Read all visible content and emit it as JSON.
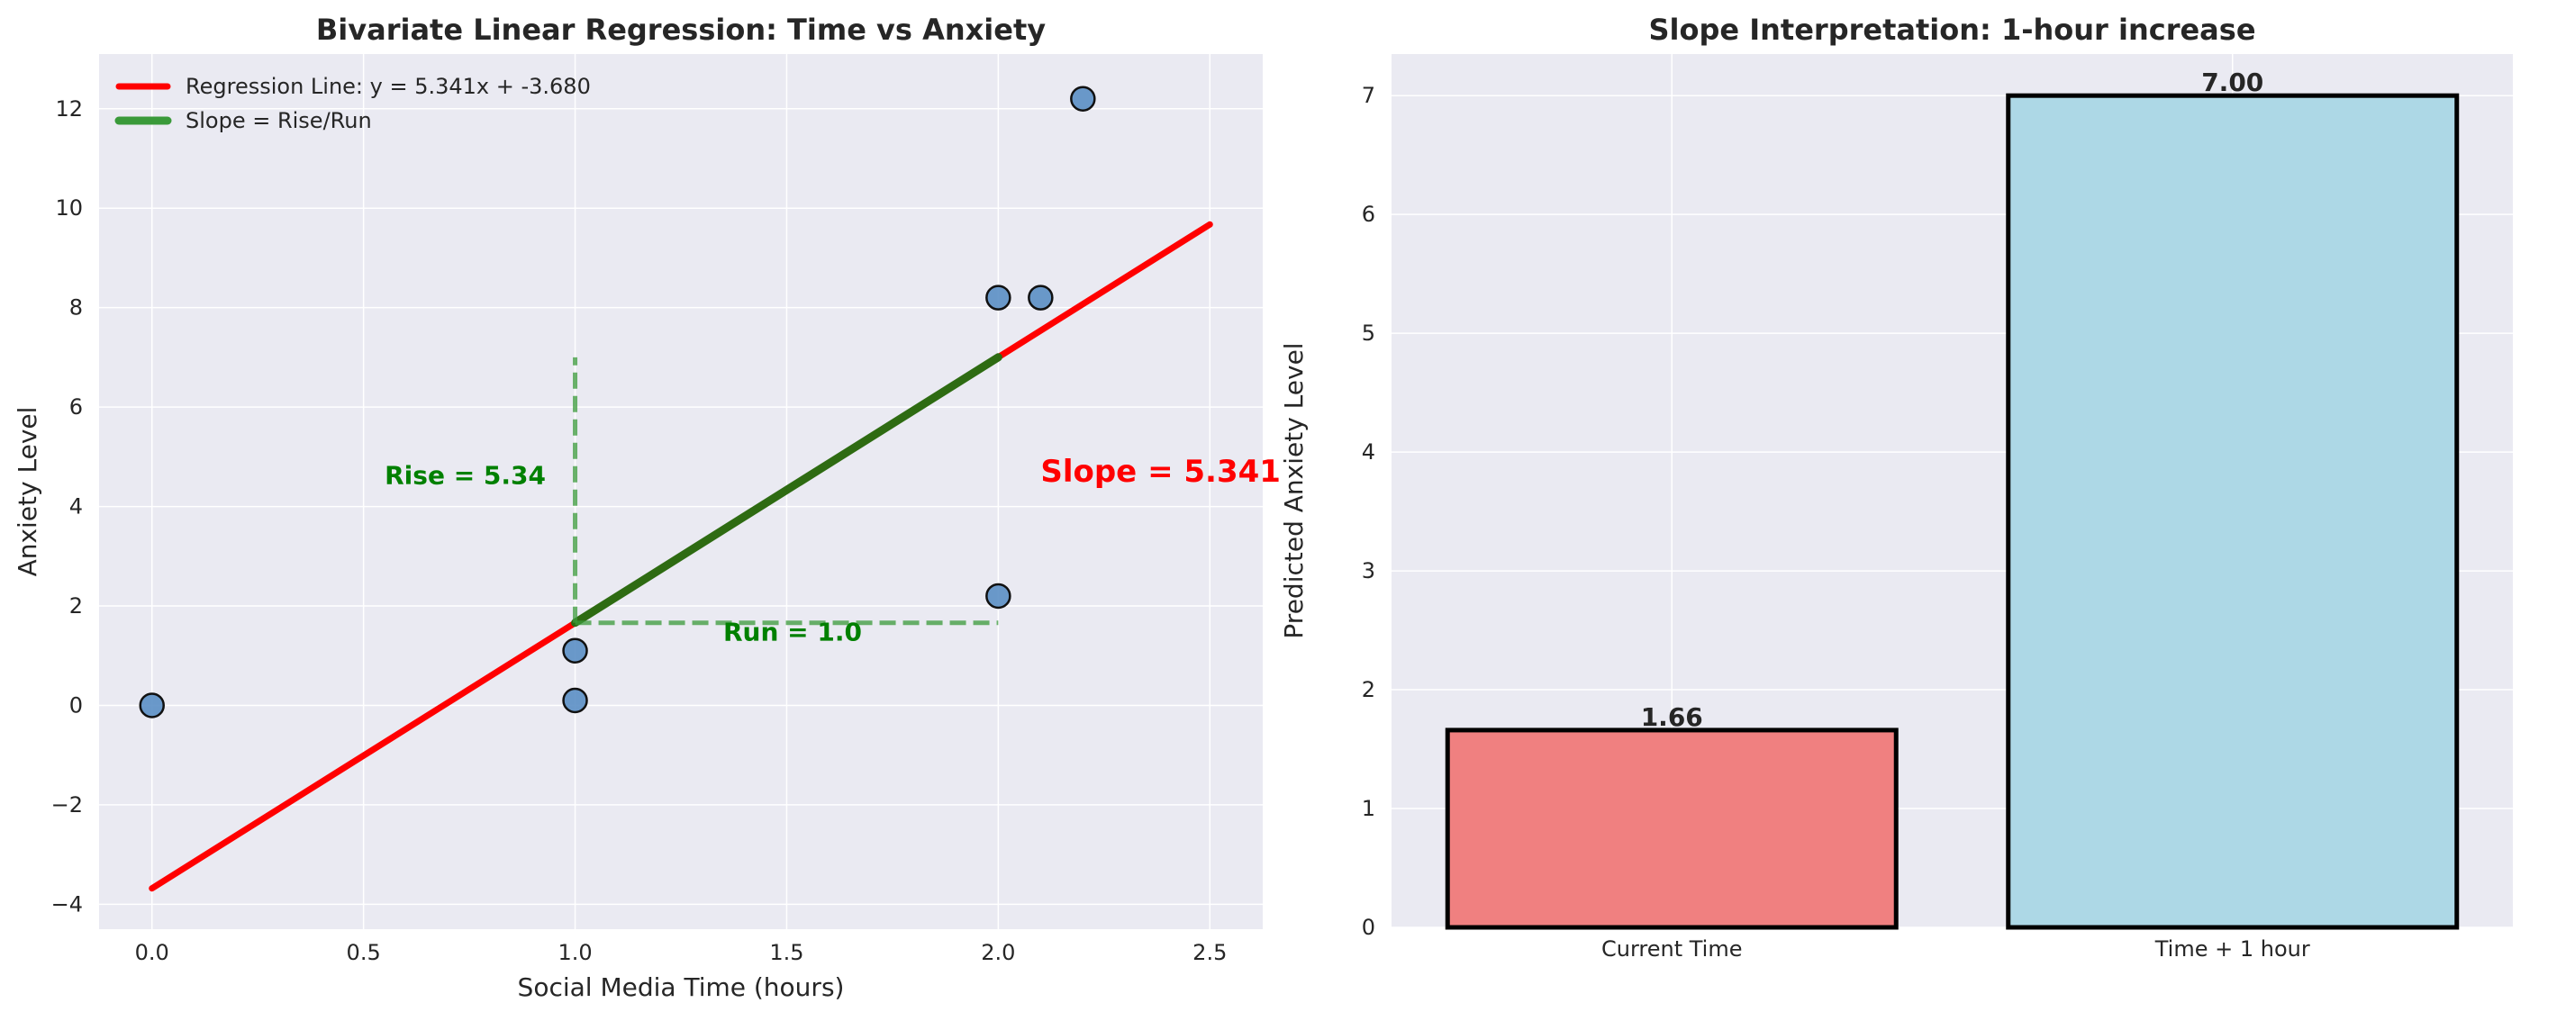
{
  "chart_data": [
    {
      "type": "scatter",
      "title": "Bivariate Linear Regression: Time vs Anxiety",
      "xlabel": "Social Media Time (hours)",
      "ylabel": "Anxiety Level",
      "xlim": [
        -0.125,
        2.625
      ],
      "ylim": [
        -4.5,
        13.1
      ],
      "xticks": [
        0.0,
        0.5,
        1.0,
        1.5,
        2.0,
        2.5
      ],
      "xtick_labels": [
        "0.0",
        "0.5",
        "1.0",
        "1.5",
        "2.0",
        "2.5"
      ],
      "yticks": [
        -4,
        -2,
        0,
        2,
        4,
        6,
        8,
        10,
        12
      ],
      "ytick_labels": [
        "−4",
        "−2",
        "0",
        "2",
        "4",
        "6",
        "8",
        "10",
        "12"
      ],
      "grid": true,
      "legend_position": "top-left",
      "points": [
        {
          "x": 0.0,
          "y": 0.0
        },
        {
          "x": 1.0,
          "y": 1.1
        },
        {
          "x": 1.0,
          "y": 0.1
        },
        {
          "x": 2.0,
          "y": 8.2
        },
        {
          "x": 2.1,
          "y": 8.2
        },
        {
          "x": 2.2,
          "y": 12.2
        },
        {
          "x": 2.0,
          "y": 2.2
        }
      ],
      "regression": {
        "label": "Regression Line: y = 5.341x + -3.680",
        "slope": 5.341,
        "intercept": -3.68,
        "x_range": [
          0.0,
          2.5
        ],
        "color": "#ff0000"
      },
      "slope_segment": {
        "label": "Slope = Rise/Run",
        "x_range": [
          1.0,
          2.0
        ],
        "color": "#2e6b12",
        "legend_color": "#3a9a3a"
      },
      "run_line": {
        "x": [
          1.0,
          2.0
        ],
        "y": 1.66
      },
      "rise_line": {
        "x": 1.0,
        "y": [
          1.66,
          7.0
        ]
      },
      "annotations": {
        "rise": {
          "text": "Rise = 5.34",
          "x": 0.55,
          "y": 4.45,
          "color": "#008000"
        },
        "run": {
          "text": "Run = 1.0",
          "x": 1.35,
          "y": 1.3,
          "color": "#008000"
        },
        "slope": {
          "text": "Slope = 5.341",
          "x": 2.1,
          "y": 4.5,
          "color": "#ff0000"
        }
      },
      "marker_color": "#5b8fc4"
    },
    {
      "type": "bar",
      "title": "Slope Interpretation: 1-hour increase",
      "xlabel": "",
      "ylabel": "Predicted Anxiety Level",
      "categories": [
        "Current Time",
        "Time + 1 hour"
      ],
      "values": [
        1.66,
        7.0
      ],
      "value_labels": [
        "1.66",
        "7.00"
      ],
      "colors": [
        "#f08080",
        "#add8e6"
      ],
      "ylim": [
        0,
        7.35
      ],
      "yticks": [
        0,
        1,
        2,
        3,
        4,
        5,
        6,
        7
      ],
      "ytick_labels": [
        "0",
        "1",
        "2",
        "3",
        "4",
        "5",
        "6",
        "7"
      ],
      "grid": true
    }
  ]
}
